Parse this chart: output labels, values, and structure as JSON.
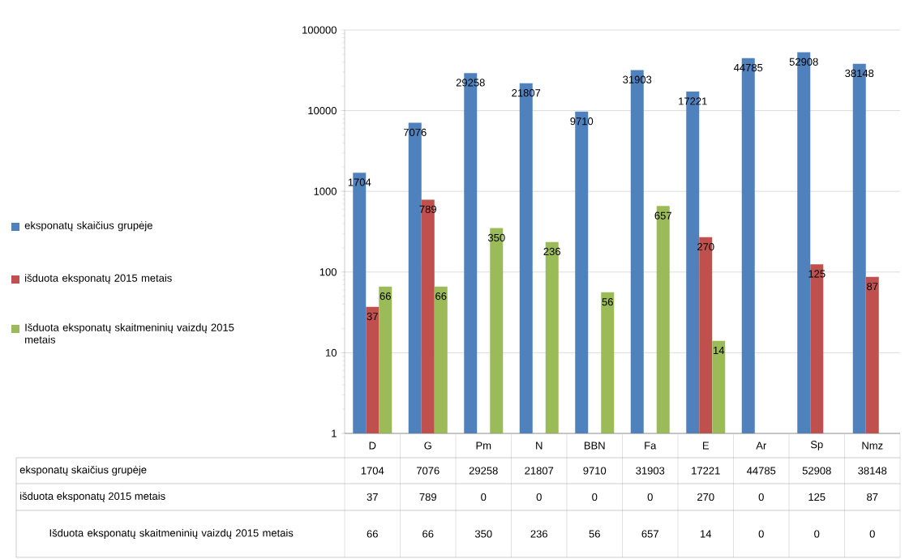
{
  "chart_data": {
    "type": "bar",
    "log": "y",
    "ylim": [
      1,
      100000
    ],
    "yticks": [
      1,
      10,
      100,
      1000,
      10000,
      100000
    ],
    "grid": "y",
    "legend": "left",
    "categories": [
      "D",
      "G",
      "Pm",
      "N",
      "BBN",
      "Fa",
      "E",
      "Ar",
      "Sp",
      "Nmz"
    ],
    "series": [
      {
        "name": "eksponatų skaičius grupėje",
        "color": "#4f81bd",
        "values": [
          1704,
          7076,
          29258,
          21807,
          9710,
          31903,
          17221,
          44785,
          52908,
          38148
        ],
        "value_labels": [
          "1704",
          "7076",
          "29258",
          "21807",
          "9710",
          "31903",
          "17221",
          "44785",
          "52908",
          "38148"
        ]
      },
      {
        "name": "išduota eksponatų 2015 metais",
        "color": "#c0504d",
        "values": [
          37,
          789,
          null,
          null,
          null,
          null,
          270,
          null,
          125,
          87
        ],
        "value_labels": [
          "37",
          "789",
          "0",
          "0",
          "0",
          "0",
          "270",
          "0",
          "125",
          "87"
        ]
      },
      {
        "name": "Išduota eksponatų  skaitmeninių vaizdų 2015 metais",
        "color": "#9bbb59",
        "values": [
          66,
          66,
          350,
          236,
          56,
          657,
          14,
          null,
          null,
          null
        ],
        "value_labels": [
          "66",
          "66",
          "350",
          "236",
          "56",
          "657",
          "14",
          "0",
          "0",
          "0"
        ]
      }
    ]
  }
}
